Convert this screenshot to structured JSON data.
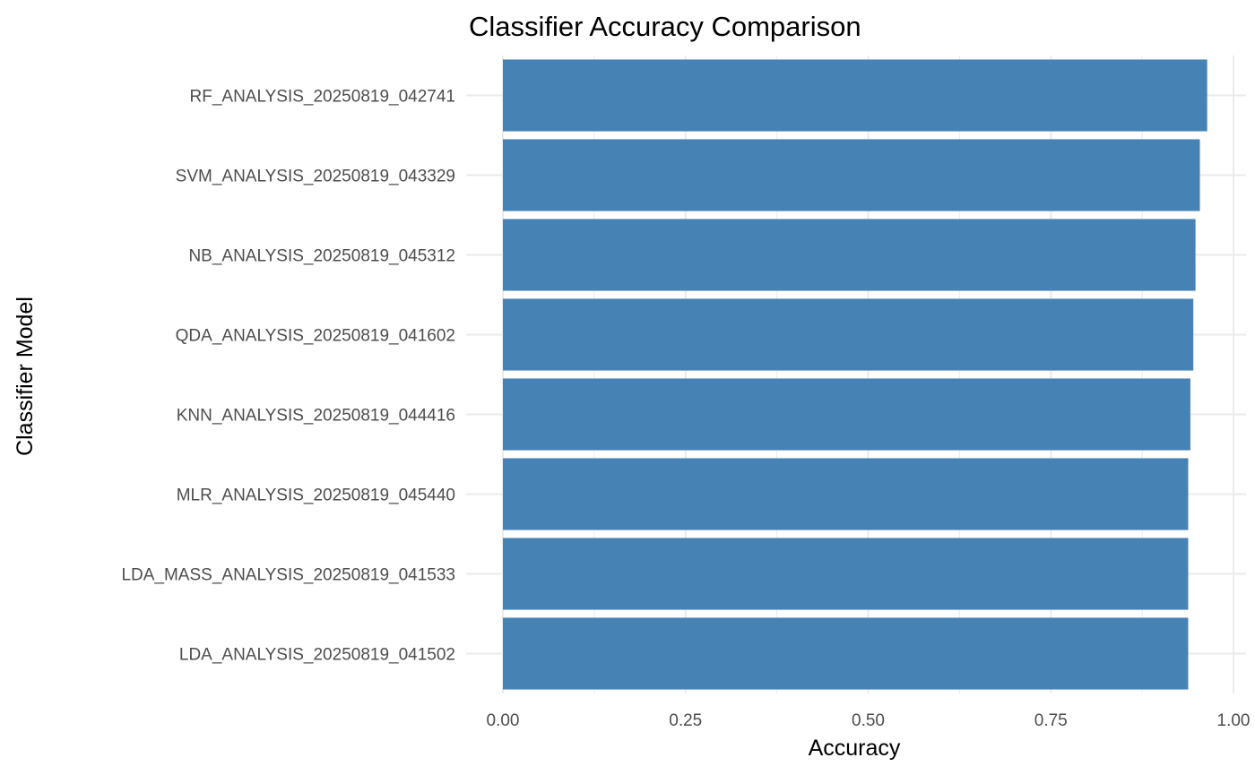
{
  "chart_data": {
    "type": "bar",
    "orientation": "horizontal",
    "title": "Classifier Accuracy Comparison",
    "xlabel": "Accuracy",
    "ylabel": "Classifier Model",
    "categories": [
      "RF_ANALYSIS_20250819_042741",
      "SVM_ANALYSIS_20250819_043329",
      "NB_ANALYSIS_20250819_045312",
      "QDA_ANALYSIS_20250819_041602",
      "KNN_ANALYSIS_20250819_044416",
      "MLR_ANALYSIS_20250819_045440",
      "LDA_MASS_ANALYSIS_20250819_041533",
      "LDA_ANALYSIS_20250819_041502"
    ],
    "values": [
      0.964,
      0.954,
      0.948,
      0.945,
      0.941,
      0.938,
      0.938,
      0.938
    ],
    "xlim": [
      0,
      1
    ],
    "xticks": [
      "0.00",
      "0.25",
      "0.50",
      "0.75",
      "1.00"
    ],
    "grid": true,
    "bar_color": "#4682b4",
    "grid_color": "#ebebeb"
  }
}
